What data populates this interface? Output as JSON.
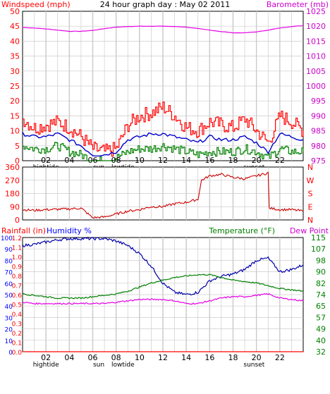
{
  "colors": {
    "windspeed": "#ff0000",
    "barometer": "#e600e6",
    "wind_avg": "#0000cc",
    "wind_gust_low": "#008000",
    "direction": "#cc0000",
    "rainfall": "#ff0000",
    "humidity": "#0000aa",
    "temperature": "#008000",
    "dewpoint": "#e600e6",
    "grid": "#cccccc",
    "axis_text_left": "#ff0000",
    "axis_text_right": "#cc00cc",
    "axis_text_green": "#008000",
    "axis_text_blue": "#0000ff"
  },
  "chart_data": [
    {
      "type": "line",
      "title": "24 hour graph day : May 02 2011",
      "ylabel": "Windspeed (mph)",
      "y2label": "Barometer (mb)",
      "ylim": [
        0,
        50
      ],
      "y2lim": [
        975,
        1025
      ],
      "yticks": [
        "0",
        "5",
        "10",
        "15",
        "20",
        "25",
        "30",
        "35",
        "40",
        "45",
        "50"
      ],
      "y2ticks": [
        "975",
        "980",
        "985",
        "990",
        "995",
        "1000",
        "1005",
        "1010",
        "1015",
        "1020",
        "1025"
      ],
      "xticks": [
        "02",
        "04",
        "06",
        "08",
        "10",
        "12",
        "14",
        "16",
        "18",
        "20",
        "22"
      ],
      "x_annotations": [
        "hightide",
        "sun",
        "lowtide",
        "sunset"
      ],
      "grid": true,
      "series": [
        {
          "name": "Windspeed (mph)",
          "axis": "left",
          "x": [
            0,
            1,
            2,
            3,
            4,
            5,
            6,
            7,
            8,
            9,
            10,
            11,
            12,
            13,
            14,
            15,
            16,
            17,
            18,
            19,
            20,
            21,
            22,
            23,
            24
          ],
          "values": [
            14,
            11,
            12,
            13,
            11,
            8,
            4,
            3,
            4,
            12,
            15,
            16,
            18,
            15,
            11,
            10,
            13,
            12,
            11,
            14,
            10,
            6,
            15,
            13,
            10
          ]
        },
        {
          "name": "Wind average",
          "axis": "left",
          "x": [
            0,
            1,
            2,
            3,
            4,
            5,
            6,
            7,
            8,
            9,
            10,
            11,
            12,
            13,
            14,
            15,
            16,
            17,
            18,
            19,
            20,
            21,
            22,
            23,
            24
          ],
          "values": [
            9,
            8,
            8,
            9,
            7,
            5,
            2,
            2,
            3,
            7,
            8,
            9,
            9,
            8,
            7,
            6,
            8,
            7,
            7,
            8,
            6,
            3,
            9,
            8,
            7
          ]
        },
        {
          "name": "Wind low",
          "axis": "left",
          "x": [
            0,
            1,
            2,
            3,
            4,
            5,
            6,
            7,
            8,
            9,
            10,
            11,
            12,
            13,
            14,
            15,
            16,
            17,
            18,
            19,
            20,
            21,
            22,
            23,
            24
          ],
          "values": [
            5,
            4,
            4,
            5,
            3,
            2,
            0,
            0,
            1,
            3,
            4,
            4,
            5,
            4,
            3,
            2,
            3,
            3,
            3,
            4,
            3,
            1,
            4,
            3,
            3
          ]
        },
        {
          "name": "Barometer (mb)",
          "axis": "right",
          "x": [
            0,
            1,
            2,
            3,
            4,
            5,
            6,
            7,
            8,
            9,
            10,
            11,
            12,
            13,
            14,
            15,
            16,
            17,
            18,
            19,
            20,
            21,
            22,
            23,
            24
          ],
          "values": [
            1019.6,
            1019.4,
            1019.1,
            1018.7,
            1018.3,
            1018.3,
            1018.6,
            1019.2,
            1019.7,
            1019.9,
            1020.0,
            1020.0,
            1020.0,
            1019.9,
            1019.7,
            1019.2,
            1018.7,
            1018.2,
            1017.8,
            1017.8,
            1018.1,
            1018.7,
            1019.4,
            1019.9,
            1020.2
          ]
        }
      ]
    },
    {
      "type": "line",
      "title": "",
      "ylabel": "",
      "ylim": [
        0,
        360
      ],
      "yticks": [
        "0",
        "90",
        "180",
        "270",
        "360"
      ],
      "y2ticks": [
        "N",
        "W",
        "S",
        "E",
        "N"
      ],
      "grid": true,
      "series": [
        {
          "name": "Wind direction",
          "axis": "left",
          "x": [
            0,
            1,
            2,
            3,
            4,
            5,
            6,
            7,
            8,
            9,
            10,
            11,
            12,
            13,
            14,
            15,
            15.3,
            16,
            17,
            18,
            19,
            20,
            21,
            21.1,
            22,
            23,
            24
          ],
          "values": [
            70,
            65,
            70,
            72,
            75,
            80,
            15,
            20,
            40,
            60,
            70,
            90,
            90,
            110,
            120,
            140,
            270,
            300,
            310,
            290,
            280,
            300,
            320,
            80,
            70,
            70,
            60
          ]
        }
      ]
    },
    {
      "type": "line",
      "title": "",
      "ylabel": "Rainfall (in)",
      "ylabel2": "Humidity %",
      "y2label": "Temperature (°F)",
      "y2label2": "Dew Point",
      "rain_ticks": [
        "0.0",
        "0.1",
        "0.2",
        "0.3",
        "0.4",
        "0.5",
        "0.6",
        "0.7",
        "0.8",
        "0.9",
        "1.0",
        "1.1",
        "1.2"
      ],
      "humidity_ticks": [
        "0",
        "10",
        "20",
        "30",
        "40",
        "50",
        "60",
        "70",
        "80",
        "90",
        "100"
      ],
      "temp_ticks": [
        "32",
        "40",
        "49",
        "57",
        "65",
        "74",
        "82",
        "90",
        "98",
        "107",
        "115"
      ],
      "temp_lim": [
        32,
        115
      ],
      "humidity_lim": [
        0,
        100
      ],
      "xticks": [
        "02",
        "04",
        "06",
        "08",
        "10",
        "12",
        "14",
        "16",
        "18",
        "20",
        "22"
      ],
      "x_annotations": [
        "hightide",
        "sun",
        "lowtide",
        "sunset"
      ],
      "grid": true,
      "series": [
        {
          "name": "Humidity %",
          "axis": "humidity",
          "x": [
            0,
            1,
            2,
            3,
            4,
            5,
            6,
            7,
            8,
            9,
            10,
            11,
            12,
            13,
            14,
            15,
            16,
            17,
            18,
            19,
            20,
            21,
            22,
            23,
            24
          ],
          "values": [
            93,
            94,
            96,
            98,
            99,
            99,
            99,
            99,
            97,
            93,
            86,
            75,
            60,
            52,
            50,
            52,
            62,
            66,
            68,
            72,
            80,
            82,
            70,
            72,
            76
          ]
        },
        {
          "name": "Temperature (°F)",
          "axis": "temp",
          "x": [
            0,
            1,
            2,
            3,
            4,
            5,
            6,
            7,
            8,
            9,
            10,
            11,
            12,
            13,
            14,
            15,
            16,
            17,
            18,
            19,
            20,
            21,
            22,
            23,
            24
          ],
          "values": [
            74,
            73,
            72,
            71,
            71,
            71,
            72,
            73,
            74,
            76,
            79,
            82,
            84,
            86,
            87,
            88,
            88,
            86,
            84,
            83,
            82,
            80,
            78,
            77,
            76
          ]
        },
        {
          "name": "Dew Point",
          "axis": "temp",
          "x": [
            0,
            1,
            2,
            3,
            4,
            5,
            6,
            7,
            8,
            9,
            10,
            11,
            12,
            13,
            14,
            15,
            16,
            17,
            18,
            19,
            20,
            21,
            22,
            23,
            24
          ],
          "values": [
            68,
            67,
            67,
            67,
            67,
            67,
            67,
            67,
            68,
            69,
            70,
            70,
            70,
            69,
            67,
            67,
            69,
            71,
            72,
            72,
            73,
            74,
            71,
            70,
            69
          ]
        },
        {
          "name": "Rainfall (in)",
          "axis": "rain",
          "x": [
            0,
            24
          ],
          "values": [
            0.0,
            0.0
          ]
        }
      ]
    }
  ]
}
